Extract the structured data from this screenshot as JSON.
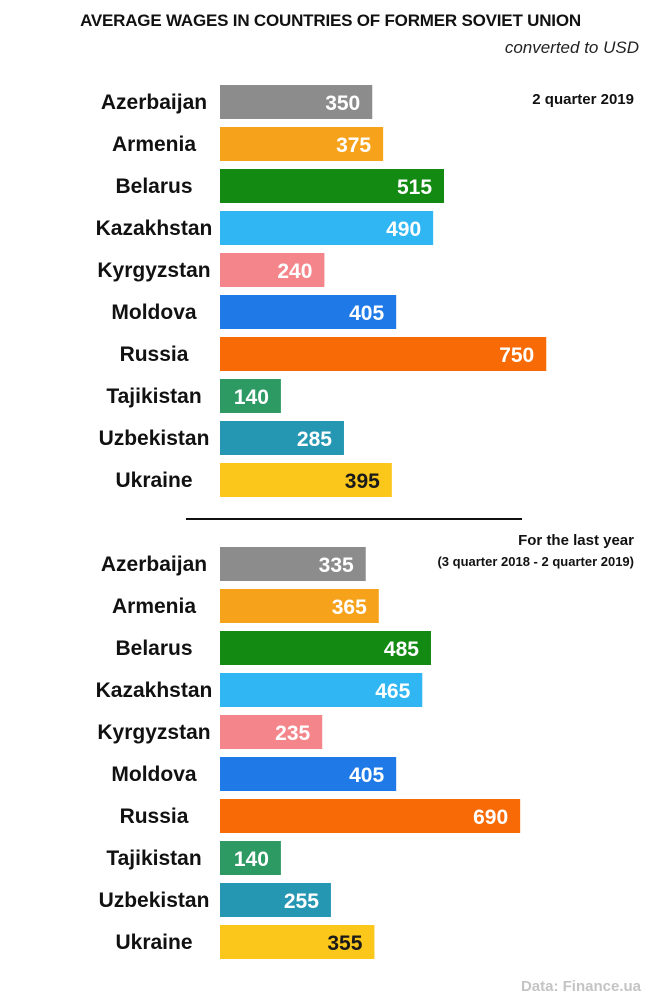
{
  "title": "AVERAGE WAGES IN COUNTRIES OF FORMER SOVIET UNION",
  "subtitle": "converted to USD",
  "source": "Data: Finance.ua",
  "colors": {
    "Azerbaijan": "#8c8c8c",
    "Armenia": "#f7a21b",
    "Belarus": "#138a12",
    "Kazakhstan": "#2fb6f3",
    "Kyrgyzstan": "#f4868b",
    "Moldova": "#1f7ae8",
    "Russia": "#f86a05",
    "Tajikistan": "#2e9a63",
    "Uzbekistan": "#2597b3",
    "Ukraine": "#fbc71b"
  },
  "chart_data": [
    {
      "type": "bar",
      "orientation": "horizontal",
      "title": "2 quarter 2019",
      "subtitle": "",
      "categories": [
        "Azerbaijan",
        "Armenia",
        "Belarus",
        "Kazakhstan",
        "Kyrgyzstan",
        "Moldova",
        "Russia",
        "Tajikistan",
        "Uzbekistan",
        "Ukraine"
      ],
      "values": [
        350,
        375,
        515,
        490,
        240,
        405,
        750,
        140,
        285,
        395
      ],
      "unit": "USD",
      "grid": false,
      "legend": "none"
    },
    {
      "type": "bar",
      "orientation": "horizontal",
      "title": "For the last year",
      "subtitle": "(3 quarter 2018 - 2 quarter 2019)",
      "categories": [
        "Azerbaijan",
        "Armenia",
        "Belarus",
        "Kazakhstan",
        "Kyrgyzstan",
        "Moldova",
        "Russia",
        "Tajikistan",
        "Uzbekistan",
        "Ukraine"
      ],
      "values": [
        335,
        365,
        485,
        465,
        235,
        405,
        690,
        140,
        255,
        355
      ],
      "unit": "USD",
      "grid": false,
      "legend": "none"
    }
  ]
}
